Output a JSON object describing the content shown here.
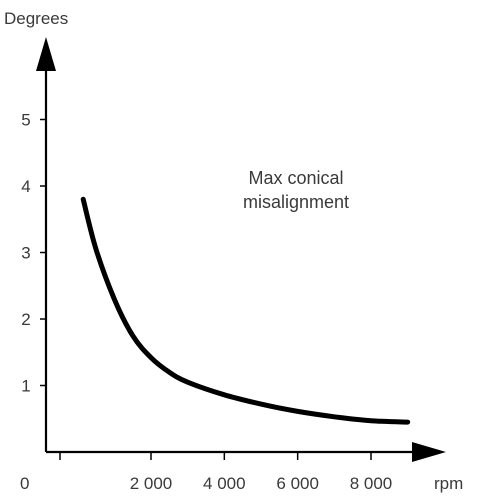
{
  "chart_data": {
    "type": "line",
    "title": "",
    "xlabel": "rpm",
    "ylabel": "Degrees",
    "origin_label": "0",
    "xlim": [
      0,
      9500
    ],
    "ylim": [
      0,
      6
    ],
    "x_ticks": [
      2000,
      4000,
      6000,
      8000
    ],
    "x_tick_labels": [
      "2 000",
      "4 000",
      "6 000",
      "8 000"
    ],
    "y_ticks": [
      1,
      2,
      3,
      4,
      5
    ],
    "y_tick_labels": [
      "1",
      "2",
      "3",
      "4",
      "5"
    ],
    "grid": false,
    "annotation": [
      "Max conical",
      "misalignment"
    ],
    "series": [
      {
        "x": [
          150,
          500,
          1000,
          1500,
          2000,
          2500,
          3000,
          4000,
          5000,
          6000,
          7000,
          8000,
          9000
        ],
        "y": [
          3.8,
          3.05,
          2.3,
          1.75,
          1.42,
          1.2,
          1.05,
          0.86,
          0.72,
          0.61,
          0.53,
          0.47,
          0.45
        ]
      }
    ],
    "line_color": "#000000",
    "axis_color": "#000000"
  }
}
